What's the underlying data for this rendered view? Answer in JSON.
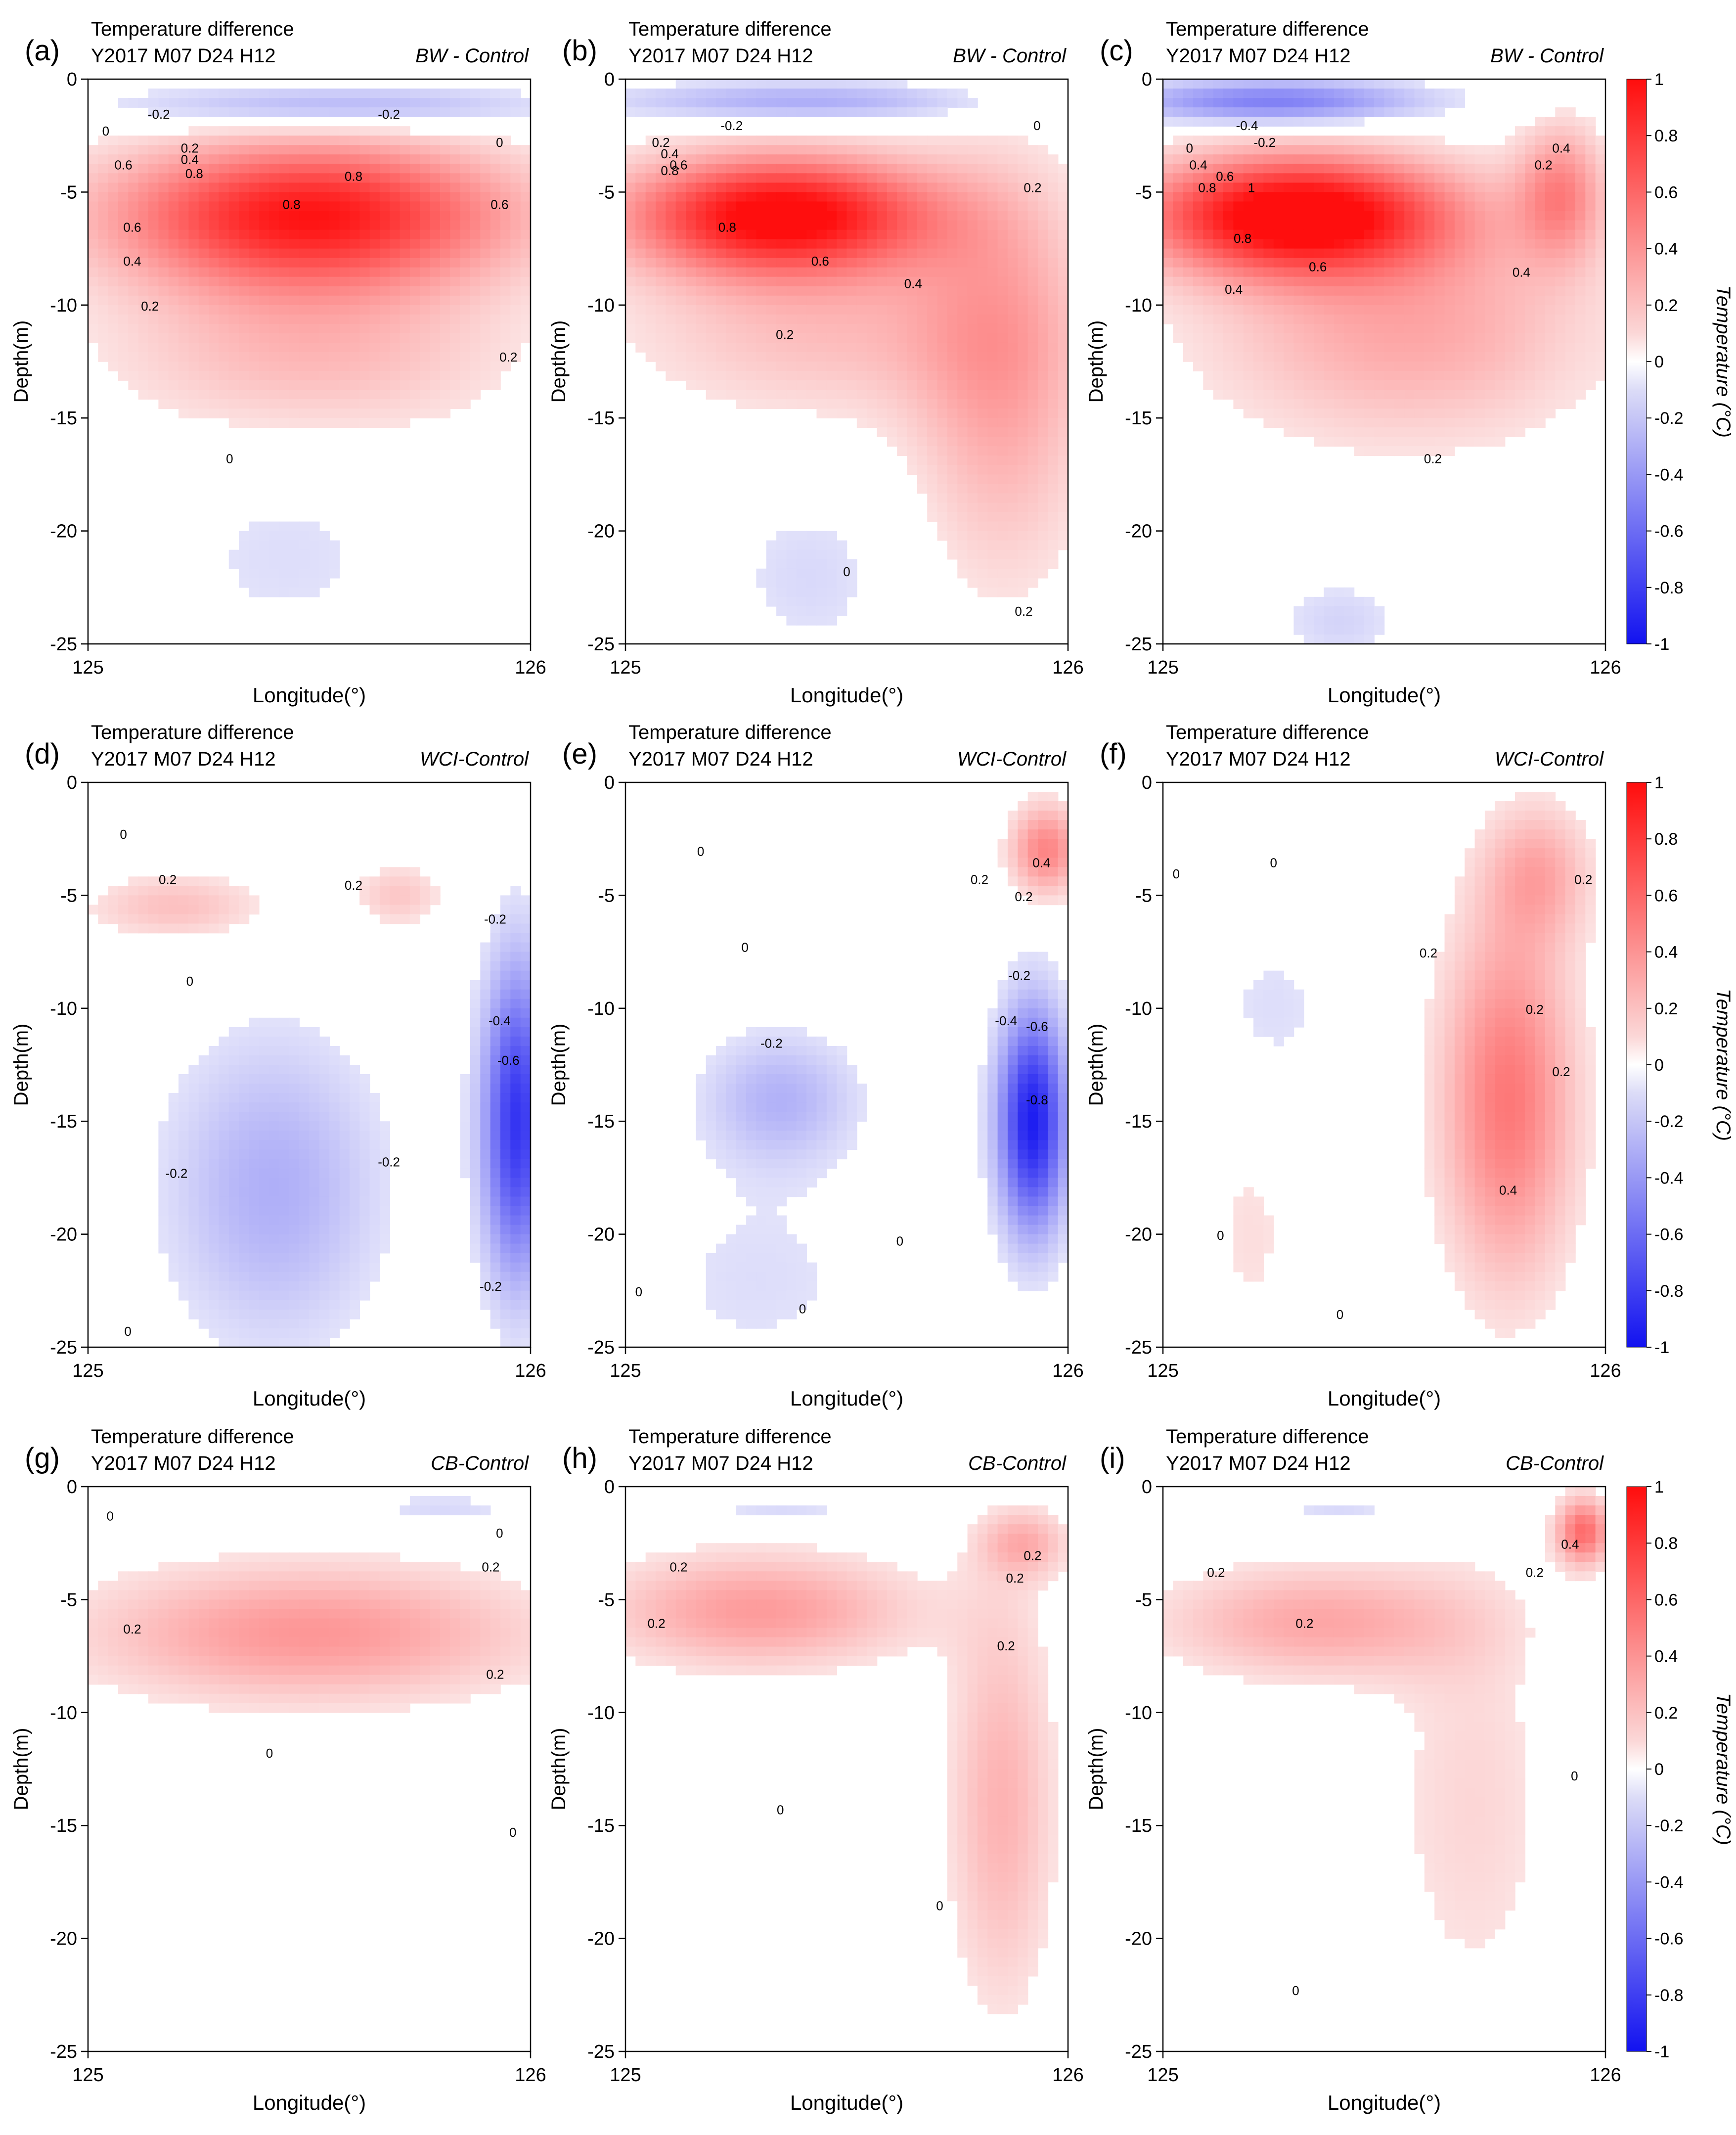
{
  "figure": {
    "colorbar_label": "Temperature (°C)",
    "colorbar_ticks": [
      "1",
      "0.8",
      "0.6",
      "0.4",
      "0.2",
      "0",
      "-0.2",
      "-0.4",
      "-0.6",
      "-0.8",
      "-1"
    ]
  },
  "chart_data": [
    {
      "type": "heatmap",
      "panel": "(a)",
      "title": "Temperature difference",
      "date": "Y2017 M07 D24 H12",
      "experiment": "BW - Control",
      "xlabel": "Longitude(°)",
      "ylabel": "Depth(m)",
      "xticks": [
        "125",
        "126"
      ],
      "yticks": [
        "0",
        "-5",
        "-10",
        "-15",
        "-20",
        "-25"
      ],
      "xlim": [
        125,
        126
      ],
      "ylim": [
        -25,
        0
      ],
      "contour_labels": [
        "-0.2",
        "-0.2",
        "0",
        "0",
        "0.2",
        "0.4",
        "0.6",
        "0.8",
        "0.8",
        "0.8",
        "0.6",
        "0.6",
        "0.4",
        "0.2",
        "0.2",
        "0"
      ]
    },
    {
      "type": "heatmap",
      "panel": "(b)",
      "title": "Temperature difference",
      "date": "Y2017 M07 D24 H12",
      "experiment": "BW - Control",
      "xlabel": "Longitude(°)",
      "ylabel": "Depth(m)",
      "xticks": [
        "125",
        "126"
      ],
      "yticks": [
        "0",
        "-5",
        "-10",
        "-15",
        "-20",
        "-25"
      ],
      "xlim": [
        125,
        126
      ],
      "ylim": [
        -25,
        0
      ],
      "contour_labels": [
        "-0.2",
        "0",
        "0.2",
        "0.4",
        "0.6",
        "0.8",
        "0.8",
        "0.6",
        "0.4",
        "0.2",
        "0.2",
        "0",
        "0.2"
      ]
    },
    {
      "type": "heatmap",
      "panel": "(c)",
      "title": "Temperature difference",
      "date": "Y2017 M07 D24 H12",
      "experiment": "BW - Control",
      "xlabel": "Longitude(°)",
      "ylabel": "Depth(m)",
      "xticks": [
        "125",
        "126"
      ],
      "yticks": [
        "0",
        "-5",
        "-10",
        "-15",
        "-20",
        "-25"
      ],
      "xlim": [
        125,
        126
      ],
      "ylim": [
        -25,
        0
      ],
      "contour_labels": [
        "-0.4",
        "-0.2",
        "0",
        "0.4",
        "0.6",
        "0.8",
        "1",
        "0.8",
        "0.6",
        "0.4",
        "0.4",
        "0.2",
        "0.2",
        "0.4"
      ]
    },
    {
      "type": "heatmap",
      "panel": "(d)",
      "title": "Temperature difference",
      "date": "Y2017 M07 D24 H12",
      "experiment": "WCI-Control",
      "xlabel": "Longitude(°)",
      "ylabel": "Depth(m)",
      "xticks": [
        "125",
        "126"
      ],
      "yticks": [
        "0",
        "-5",
        "-10",
        "-15",
        "-20",
        "-25"
      ],
      "xlim": [
        125,
        126
      ],
      "ylim": [
        -25,
        0
      ],
      "contour_labels": [
        "0",
        "0.2",
        "0.2",
        "0",
        "-0.2",
        "-0.4",
        "-0.6",
        "-0.2",
        "-0.2",
        "-0.2",
        "0"
      ]
    },
    {
      "type": "heatmap",
      "panel": "(e)",
      "title": "Temperature difference",
      "date": "Y2017 M07 D24 H12",
      "experiment": "WCI-Control",
      "xlabel": "Longitude(°)",
      "ylabel": "Depth(m)",
      "xticks": [
        "125",
        "126"
      ],
      "yticks": [
        "0",
        "-5",
        "-10",
        "-15",
        "-20",
        "-25"
      ],
      "xlim": [
        125,
        126
      ],
      "ylim": [
        -25,
        0
      ],
      "contour_labels": [
        "0",
        "0.2",
        "0.4",
        "0.2",
        "0",
        "-0.2",
        "-0.4",
        "-0.6",
        "-0.8",
        "-0.2",
        "0",
        "0",
        "0"
      ]
    },
    {
      "type": "heatmap",
      "panel": "(f)",
      "title": "Temperature difference",
      "date": "Y2017 M07 D24 H12",
      "experiment": "WCI-Control",
      "xlabel": "Longitude(°)",
      "ylabel": "Depth(m)",
      "xticks": [
        "125",
        "126"
      ],
      "yticks": [
        "0",
        "-5",
        "-10",
        "-15",
        "-20",
        "-25"
      ],
      "xlim": [
        125,
        126
      ],
      "ylim": [
        -25,
        0
      ],
      "contour_labels": [
        "0",
        "0",
        "0.2",
        "0.2",
        "0.2",
        "0.4",
        "0.2",
        "0",
        "0"
      ]
    },
    {
      "type": "heatmap",
      "panel": "(g)",
      "title": "Temperature difference",
      "date": "Y2017 M07 D24 H12",
      "experiment": "CB-Control",
      "xlabel": "Longitude(°)",
      "ylabel": "Depth(m)",
      "xticks": [
        "125",
        "126"
      ],
      "yticks": [
        "0",
        "-5",
        "-10",
        "-15",
        "-20",
        "-25"
      ],
      "xlim": [
        125,
        126
      ],
      "ylim": [
        -25,
        0
      ],
      "contour_labels": [
        "0",
        "0",
        "0.2",
        "0.2",
        "0.2",
        "0",
        "0"
      ]
    },
    {
      "type": "heatmap",
      "panel": "(h)",
      "title": "Temperature difference",
      "date": "Y2017 M07 D24 H12",
      "experiment": "CB-Control",
      "xlabel": "Longitude(°)",
      "ylabel": "Depth(m)",
      "xticks": [
        "125",
        "126"
      ],
      "yticks": [
        "0",
        "-5",
        "-10",
        "-15",
        "-20",
        "-25"
      ],
      "xlim": [
        125,
        126
      ],
      "ylim": [
        -25,
        0
      ],
      "contour_labels": [
        "0.2",
        "0.2",
        "0.2",
        "0.2",
        "0.2",
        "0",
        "0"
      ]
    },
    {
      "type": "heatmap",
      "panel": "(i)",
      "title": "Temperature difference",
      "date": "Y2017 M07 D24 H12",
      "experiment": "CB-Control",
      "xlabel": "Longitude(°)",
      "ylabel": "Depth(m)",
      "xticks": [
        "125",
        "126"
      ],
      "yticks": [
        "0",
        "-5",
        "-10",
        "-15",
        "-20",
        "-25"
      ],
      "xlim": [
        125,
        126
      ],
      "ylim": [
        -25,
        0
      ],
      "contour_labels": [
        "0.2",
        "0.2",
        "0.4",
        "0.2",
        "0",
        "0"
      ]
    }
  ]
}
